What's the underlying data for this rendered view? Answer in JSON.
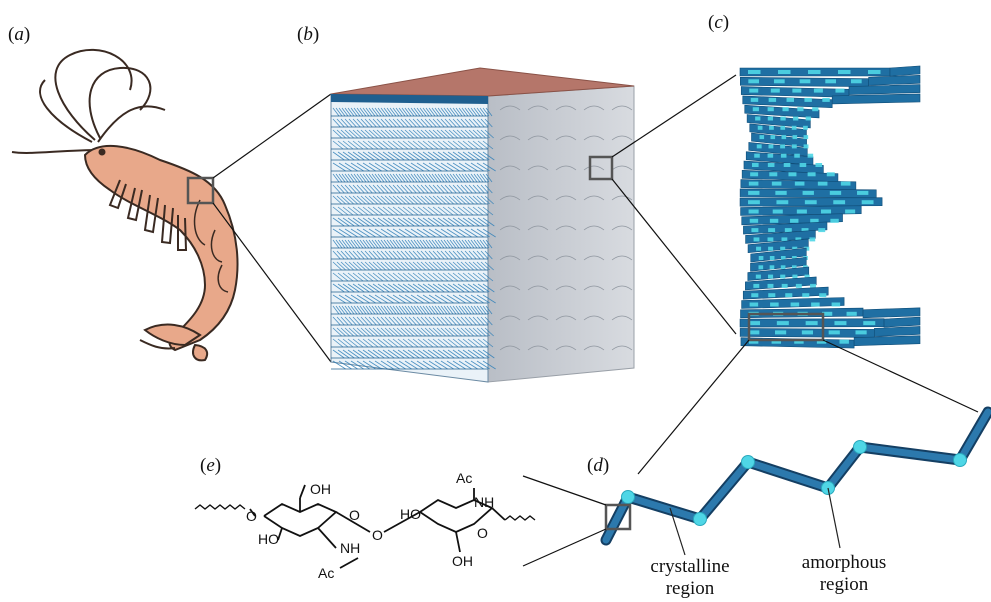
{
  "panels": {
    "a": "a",
    "b": "b",
    "c": "c",
    "d": "d",
    "e": "e"
  },
  "chemistry": {
    "oh_top_left": "OH",
    "ho_mid_left": "HO",
    "nh_bottom_left": "NH",
    "ac_bottom_left": "Ac",
    "ring_o_left": "O",
    "bridge_o": "O",
    "ho_mid_right": "HO",
    "ac_top_right": "Ac",
    "nh_top_right": "NH",
    "ring_o_right": "O",
    "oh_bottom_right": "OH",
    "o_left_chain": "O"
  },
  "labels": {
    "crystalline": [
      "crystalline",
      "region"
    ],
    "amorphous": [
      "amorphous",
      "region"
    ]
  },
  "colors": {
    "shrimp_fill": "#e8a88a",
    "shrimp_stroke": "#3a2a22",
    "cube_top": "#b5766a",
    "cube_front": "#2f7fb8",
    "cube_side": "#c8ccd2",
    "fiber_dark": "#1f5f8f",
    "fiber_light": "#4fd6e6",
    "zoom_box": "#555555"
  }
}
